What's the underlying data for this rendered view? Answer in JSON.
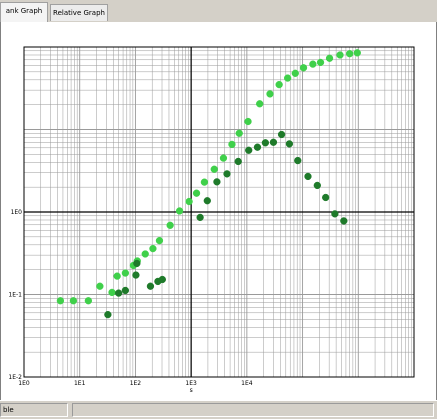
{
  "tabs": [
    {
      "label": "ank Graph",
      "active": true
    },
    {
      "label": "Relative Graph",
      "active": false
    }
  ],
  "status": {
    "text": "ble"
  },
  "colors": {
    "series_light": "#3fd04a",
    "series_dark": "#1e7a2a",
    "grid": "#9a9a9a",
    "axis": "#000000"
  },
  "chart_data": {
    "type": "scatter",
    "xscale": "log",
    "yscale": "log",
    "xlim": [
      0.001,
      10000
    ],
    "ylim": [
      0.01,
      100
    ],
    "grid": true,
    "xlabel": "s",
    "ylabel": "",
    "title": "",
    "xticklabels": [
      "1E0",
      "1E1",
      "1E2",
      "1E3",
      "1E4"
    ],
    "yticklabels": [
      "1E0",
      "1E-1",
      "1E-2"
    ],
    "series": [
      {
        "color": "#3fd04a",
        "points": [
          [
            0.0045,
            0.084
          ],
          [
            0.0077,
            0.084
          ],
          [
            0.0143,
            0.084
          ],
          [
            0.023,
            0.126
          ],
          [
            0.038,
            0.106
          ],
          [
            0.047,
            0.167
          ],
          [
            0.066,
            0.182
          ],
          [
            0.092,
            0.225
          ],
          [
            0.108,
            0.255
          ],
          [
            0.15,
            0.31
          ],
          [
            0.206,
            0.36
          ],
          [
            0.27,
            0.45
          ],
          [
            0.42,
            0.69
          ],
          [
            0.62,
            1.03
          ],
          [
            0.92,
            1.34
          ],
          [
            1.25,
            1.69
          ],
          [
            1.73,
            2.3
          ],
          [
            2.6,
            3.3
          ],
          [
            3.8,
            4.5
          ],
          [
            5.4,
            6.6
          ],
          [
            7.3,
            9.0
          ],
          [
            10.5,
            12.5
          ],
          [
            17,
            20.5
          ],
          [
            26,
            27
          ],
          [
            38,
            35
          ],
          [
            54,
            42
          ],
          [
            74,
            48
          ],
          [
            104,
            56
          ],
          [
            153,
            62
          ],
          [
            210,
            65
          ],
          [
            305,
            73
          ],
          [
            470,
            80
          ],
          [
            700,
            83
          ],
          [
            960,
            85
          ]
        ]
      },
      {
        "color": "#1e7a2a",
        "points": [
          [
            0.032,
            0.057
          ],
          [
            0.05,
            0.104
          ],
          [
            0.066,
            0.112
          ],
          [
            0.102,
            0.172
          ],
          [
            0.106,
            0.238
          ],
          [
            0.186,
            0.126
          ],
          [
            0.253,
            0.144
          ],
          [
            0.304,
            0.152
          ],
          [
            1.45,
            0.86
          ],
          [
            1.95,
            1.37
          ],
          [
            2.9,
            2.32
          ],
          [
            4.4,
            2.9
          ],
          [
            7.0,
            4.1
          ],
          [
            10.8,
            5.6
          ],
          [
            15.5,
            6.1
          ],
          [
            21.5,
            6.9
          ],
          [
            30,
            7.0
          ],
          [
            42,
            8.7
          ],
          [
            58,
            6.7
          ],
          [
            82,
            4.2
          ],
          [
            125,
            2.7
          ],
          [
            184,
            2.1
          ],
          [
            260,
            1.5
          ],
          [
            380,
            0.95
          ],
          [
            550,
            0.78
          ]
        ]
      }
    ]
  }
}
